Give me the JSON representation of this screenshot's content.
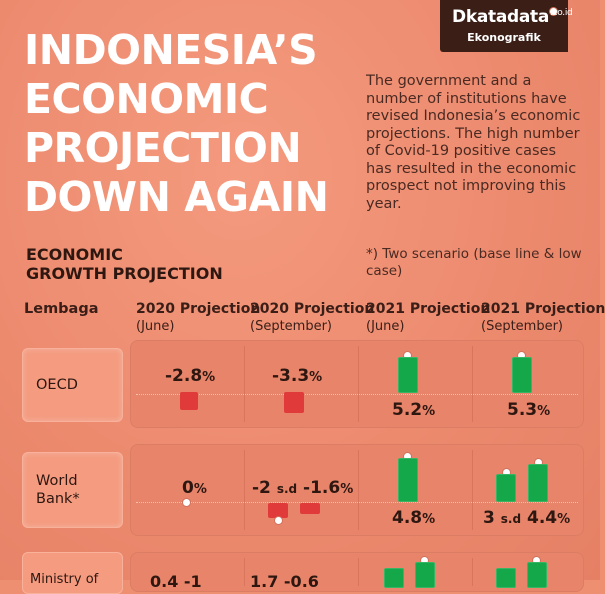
{
  "logo": {
    "brand": "katadata",
    "brand_suffix": ".co.id",
    "sub": "Ekonografik"
  },
  "title_lines": [
    "INDONESIA’S",
    "ECONOMIC",
    "PROJECTION",
    "DOWN AGAIN"
  ],
  "description": "The government and a number of institutions have revised Indonesia’s economic projections. The high number of Covid-19 positive cases has resulted in the economic prospect not improving this year.",
  "note": "*) Two scenario (base line & low case)",
  "section_title_lines": [
    "ECONOMIC",
    "GROWTH PROJECTION"
  ],
  "columns": {
    "institution": "Lembaga",
    "c1": {
      "title": "2020 Projection",
      "sub": "(June)"
    },
    "c2": {
      "title": "2020 Projection",
      "sub": "(September)"
    },
    "c3": {
      "title": "2021 Projection",
      "sub": "(June)"
    },
    "c4": {
      "title": "2021 Projection",
      "sub": "(September)"
    }
  },
  "rows": [
    {
      "institution": "OECD",
      "c1": {
        "value": "-2.8",
        "unit": "%"
      },
      "c2": {
        "value": "-3.3",
        "unit": "%"
      },
      "c3": {
        "value": "5.2",
        "unit": "%"
      },
      "c4": {
        "value": "5.3",
        "unit": "%"
      }
    },
    {
      "institution_lines": [
        "World",
        "Bank*"
      ],
      "c1": {
        "value": "0",
        "unit": "%"
      },
      "c2": {
        "value_a": "-2",
        "sd": "s.d",
        "value_b": "-1.6",
        "unit": "%"
      },
      "c3": {
        "value": "4.8",
        "unit": "%"
      },
      "c4": {
        "value_a": "3",
        "sd": "s.d",
        "value_b": "4.4",
        "unit": "%"
      }
    }
  ],
  "row3_partial": {
    "institution": "Ministry of",
    "c1": "0.4   -1",
    "c2": "1.7   -0.6"
  },
  "colors": {
    "bg": "#ef8f72",
    "negative": "#e03a3a",
    "positive": "#15a84a",
    "logo_bg": "#3b1f17"
  }
}
